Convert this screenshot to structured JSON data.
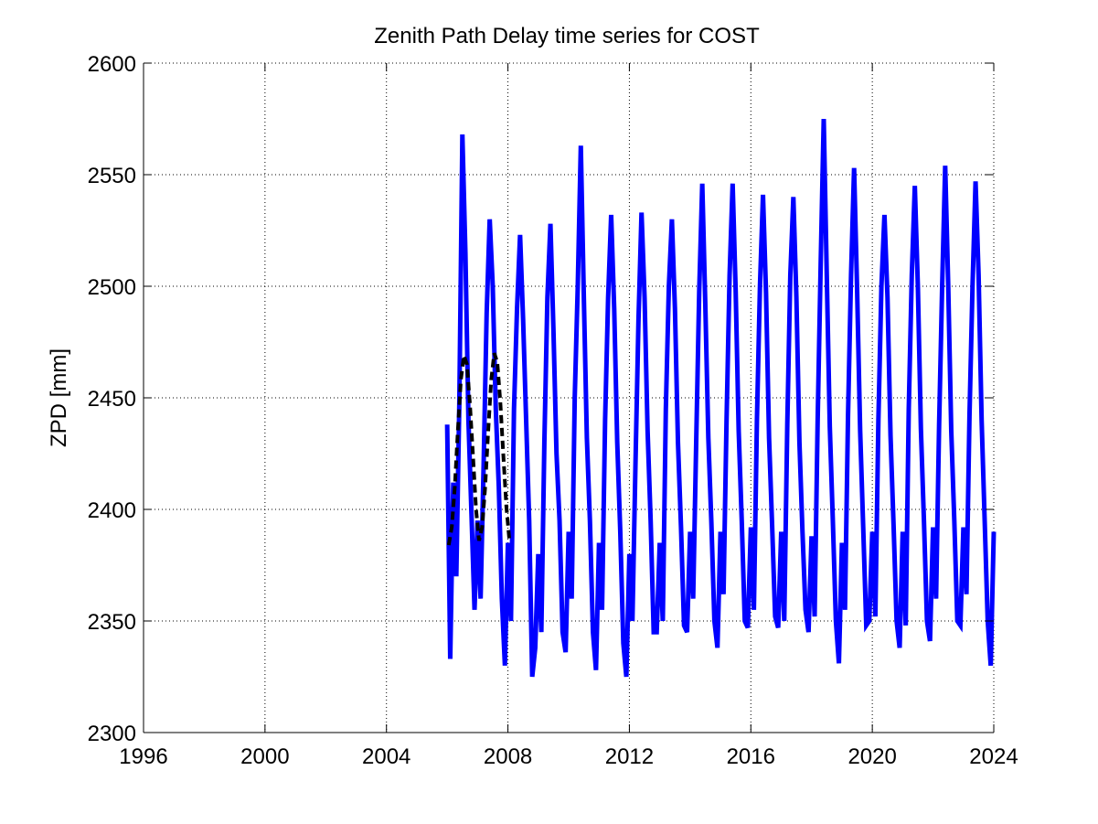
{
  "chart_data": {
    "type": "line",
    "title": "Zenith Path Delay time series for COST",
    "xlabel": "",
    "ylabel": "ZPD [mm]",
    "xlim": [
      1996,
      2024
    ],
    "ylim": [
      2300,
      2600
    ],
    "xticks": [
      1996,
      2000,
      2004,
      2008,
      2012,
      2016,
      2020,
      2024
    ],
    "yticks": [
      2300,
      2350,
      2400,
      2450,
      2500,
      2550,
      2600
    ],
    "grid": true,
    "legend": "none",
    "series": [
      {
        "style": "solid",
        "color": "#0000ff",
        "x": [
          2006.0,
          2006.1,
          2006.2,
          2006.3,
          2006.4,
          2006.5,
          2006.6,
          2006.7,
          2006.8,
          2006.9,
          2007.0,
          2007.1,
          2007.2,
          2007.3,
          2007.4,
          2007.5,
          2007.6,
          2007.7,
          2007.8,
          2007.9,
          2008.0,
          2008.1,
          2008.2,
          2008.3,
          2008.4,
          2008.5,
          2008.6,
          2008.7,
          2008.8,
          2008.9,
          2009.0,
          2009.1,
          2009.2,
          2009.3,
          2009.4,
          2009.5,
          2009.6,
          2009.7,
          2009.8,
          2009.9,
          2010.0,
          2010.1,
          2010.2,
          2010.3,
          2010.4,
          2010.5,
          2010.6,
          2010.7,
          2010.8,
          2010.9,
          2011.0,
          2011.1,
          2011.2,
          2011.3,
          2011.4,
          2011.5,
          2011.6,
          2011.7,
          2011.8,
          2011.9,
          2012.0,
          2012.1,
          2012.2,
          2012.3,
          2012.4,
          2012.5,
          2012.6,
          2012.7,
          2012.8,
          2012.9,
          2013.0,
          2013.1,
          2013.2,
          2013.3,
          2013.4,
          2013.5,
          2013.6,
          2013.7,
          2013.8,
          2013.9,
          2014.0,
          2014.1,
          2014.2,
          2014.3,
          2014.4,
          2014.5,
          2014.6,
          2014.7,
          2014.8,
          2014.9,
          2015.0,
          2015.1,
          2015.2,
          2015.3,
          2015.4,
          2015.5,
          2015.6,
          2015.7,
          2015.8,
          2015.9,
          2016.0,
          2016.1,
          2016.2,
          2016.3,
          2016.4,
          2016.5,
          2016.6,
          2016.7,
          2016.8,
          2016.9,
          2017.0,
          2017.1,
          2017.2,
          2017.3,
          2017.4,
          2017.5,
          2017.6,
          2017.7,
          2017.8,
          2017.9,
          2018.0,
          2018.1,
          2018.2,
          2018.3,
          2018.4,
          2018.5,
          2018.6,
          2018.7,
          2018.8,
          2018.9,
          2019.0,
          2019.1,
          2019.2,
          2019.3,
          2019.4,
          2019.5,
          2019.6,
          2019.7,
          2019.8,
          2019.9,
          2020.0,
          2020.1,
          2020.2,
          2020.3,
          2020.4,
          2020.5,
          2020.6,
          2020.7,
          2020.8,
          2020.9,
          2021.0,
          2021.1,
          2021.2,
          2021.3,
          2021.4,
          2021.5,
          2021.6,
          2021.7,
          2021.8,
          2021.9,
          2022.0,
          2022.1,
          2022.2,
          2022.3,
          2022.4,
          2022.5,
          2022.6,
          2022.7,
          2022.8,
          2022.9,
          2023.0,
          2023.1,
          2023.2,
          2023.3,
          2023.4,
          2023.5,
          2023.6,
          2023.7,
          2023.8,
          2023.9,
          2024.0
        ],
        "y": [
          2438,
          2333,
          2412,
          2370,
          2448,
          2568,
          2515,
          2440,
          2398,
          2355,
          2395,
          2360,
          2420,
          2488,
          2530,
          2500,
          2445,
          2410,
          2360,
          2330,
          2385,
          2350,
          2445,
          2490,
          2523,
          2485,
          2440,
          2395,
          2325,
          2338,
          2380,
          2345,
          2430,
          2495,
          2528,
          2480,
          2425,
          2395,
          2345,
          2336,
          2390,
          2360,
          2450,
          2500,
          2563,
          2495,
          2432,
          2395,
          2345,
          2328,
          2385,
          2355,
          2440,
          2495,
          2532,
          2490,
          2430,
          2390,
          2340,
          2325,
          2380,
          2350,
          2420,
          2485,
          2533,
          2495,
          2435,
          2395,
          2345,
          2345,
          2385,
          2350,
          2445,
          2500,
          2530,
          2490,
          2430,
          2392,
          2348,
          2345,
          2390,
          2360,
          2430,
          2498,
          2546,
          2492,
          2432,
          2394,
          2350,
          2338,
          2390,
          2362,
          2440,
          2505,
          2546,
          2498,
          2435,
          2395,
          2350,
          2347,
          2392,
          2355,
          2440,
          2500,
          2541,
          2497,
          2432,
          2393,
          2352,
          2347,
          2390,
          2350,
          2438,
          2505,
          2540,
          2495,
          2430,
          2390,
          2355,
          2345,
          2388,
          2352,
          2440,
          2510,
          2575,
          2505,
          2437,
          2395,
          2350,
          2331,
          2385,
          2355,
          2442,
          2505,
          2553,
          2498,
          2435,
          2392,
          2348,
          2350,
          2390,
          2352,
          2440,
          2500,
          2532,
          2495,
          2433,
          2393,
          2350,
          2338,
          2390,
          2348,
          2445,
          2505,
          2545,
          2500,
          2436,
          2395,
          2350,
          2341,
          2392,
          2360,
          2438,
          2500,
          2554,
          2500,
          2435,
          2395,
          2350,
          2348,
          2392,
          2362,
          2442,
          2500,
          2547,
          2505,
          2440,
          2395,
          2350,
          2330,
          2390
        ]
      },
      {
        "style": "dashed",
        "color": "#000000",
        "x": [
          2006.05,
          2006.15,
          2006.25,
          2006.35,
          2006.45,
          2006.55,
          2006.65,
          2006.75,
          2006.85,
          2006.95,
          2007.05,
          2007.15,
          2007.25,
          2007.35,
          2007.45,
          2007.55,
          2007.65,
          2007.75,
          2007.85,
          2007.95,
          2008.05
        ],
        "y": [
          2384,
          2392,
          2410,
          2435,
          2458,
          2469,
          2465,
          2447,
          2424,
          2400,
          2386,
          2392,
          2410,
          2435,
          2458,
          2470,
          2466,
          2448,
          2424,
          2401,
          2386
        ]
      }
    ]
  }
}
